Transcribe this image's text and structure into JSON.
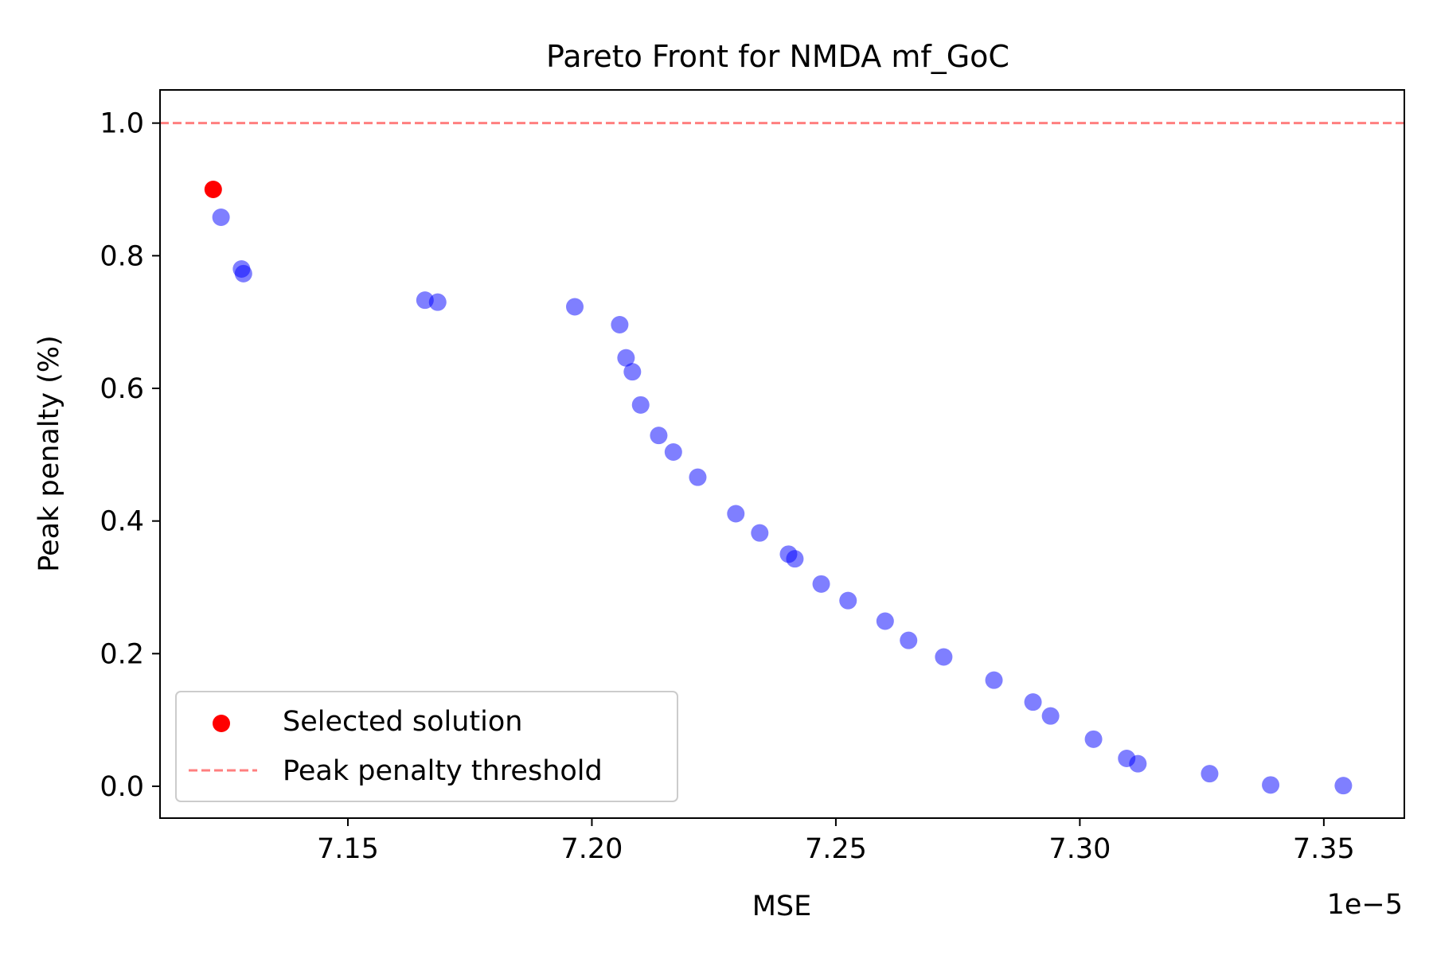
{
  "chart_data": {
    "type": "scatter",
    "title": "Pareto Front for NMDA mf_GoC",
    "xlabel": "MSE",
    "ylabel": "Peak penalty (%)",
    "x_offset_label": "1e−5",
    "x_scale_factor": 1e-05,
    "xlim": [
      7.1115,
      7.3665
    ],
    "ylim": [
      -0.048,
      1.05
    ],
    "xticks": [
      7.15,
      7.2,
      7.25,
      7.3,
      7.35
    ],
    "xtick_labels": [
      "7.15",
      "7.20",
      "7.25",
      "7.30",
      "7.35"
    ],
    "yticks": [
      0.0,
      0.2,
      0.4,
      0.6,
      0.8,
      1.0
    ],
    "ytick_labels": [
      "0.0",
      "0.2",
      "0.4",
      "0.6",
      "0.8",
      "1.0"
    ],
    "grid": false,
    "legend_position": "lower-left",
    "series": [
      {
        "name": "Pareto front",
        "show_in_legend": false,
        "color": "#0000ff",
        "alpha": 0.5,
        "points": [
          [
            7.124,
            0.858
          ],
          [
            7.1282,
            0.78
          ],
          [
            7.1286,
            0.773
          ],
          [
            7.1658,
            0.733
          ],
          [
            7.1684,
            0.73
          ],
          [
            7.1965,
            0.723
          ],
          [
            7.2057,
            0.696
          ],
          [
            7.207,
            0.646
          ],
          [
            7.2083,
            0.625
          ],
          [
            7.21,
            0.575
          ],
          [
            7.2137,
            0.529
          ],
          [
            7.2167,
            0.504
          ],
          [
            7.2217,
            0.466
          ],
          [
            7.2295,
            0.411
          ],
          [
            7.2344,
            0.382
          ],
          [
            7.2403,
            0.35
          ],
          [
            7.2416,
            0.343
          ],
          [
            7.247,
            0.305
          ],
          [
            7.2525,
            0.28
          ],
          [
            7.2601,
            0.249
          ],
          [
            7.2649,
            0.22
          ],
          [
            7.2721,
            0.195
          ],
          [
            7.2824,
            0.16
          ],
          [
            7.2904,
            0.127
          ],
          [
            7.294,
            0.106
          ],
          [
            7.3028,
            0.071
          ],
          [
            7.3096,
            0.042
          ],
          [
            7.3119,
            0.034
          ],
          [
            7.3266,
            0.019
          ],
          [
            7.3391,
            0.002
          ],
          [
            7.354,
            0.001
          ]
        ]
      },
      {
        "name": "Selected solution",
        "show_in_legend": true,
        "color": "#ff0000",
        "alpha": 1.0,
        "points": [
          [
            7.1224,
            0.9
          ]
        ]
      }
    ],
    "threshold": {
      "name": "Peak penalty threshold",
      "y": 1.0,
      "color": "#ff0000",
      "alpha": 0.5,
      "style": "dashed"
    },
    "legend": [
      "Selected solution",
      "Peak penalty threshold"
    ]
  }
}
